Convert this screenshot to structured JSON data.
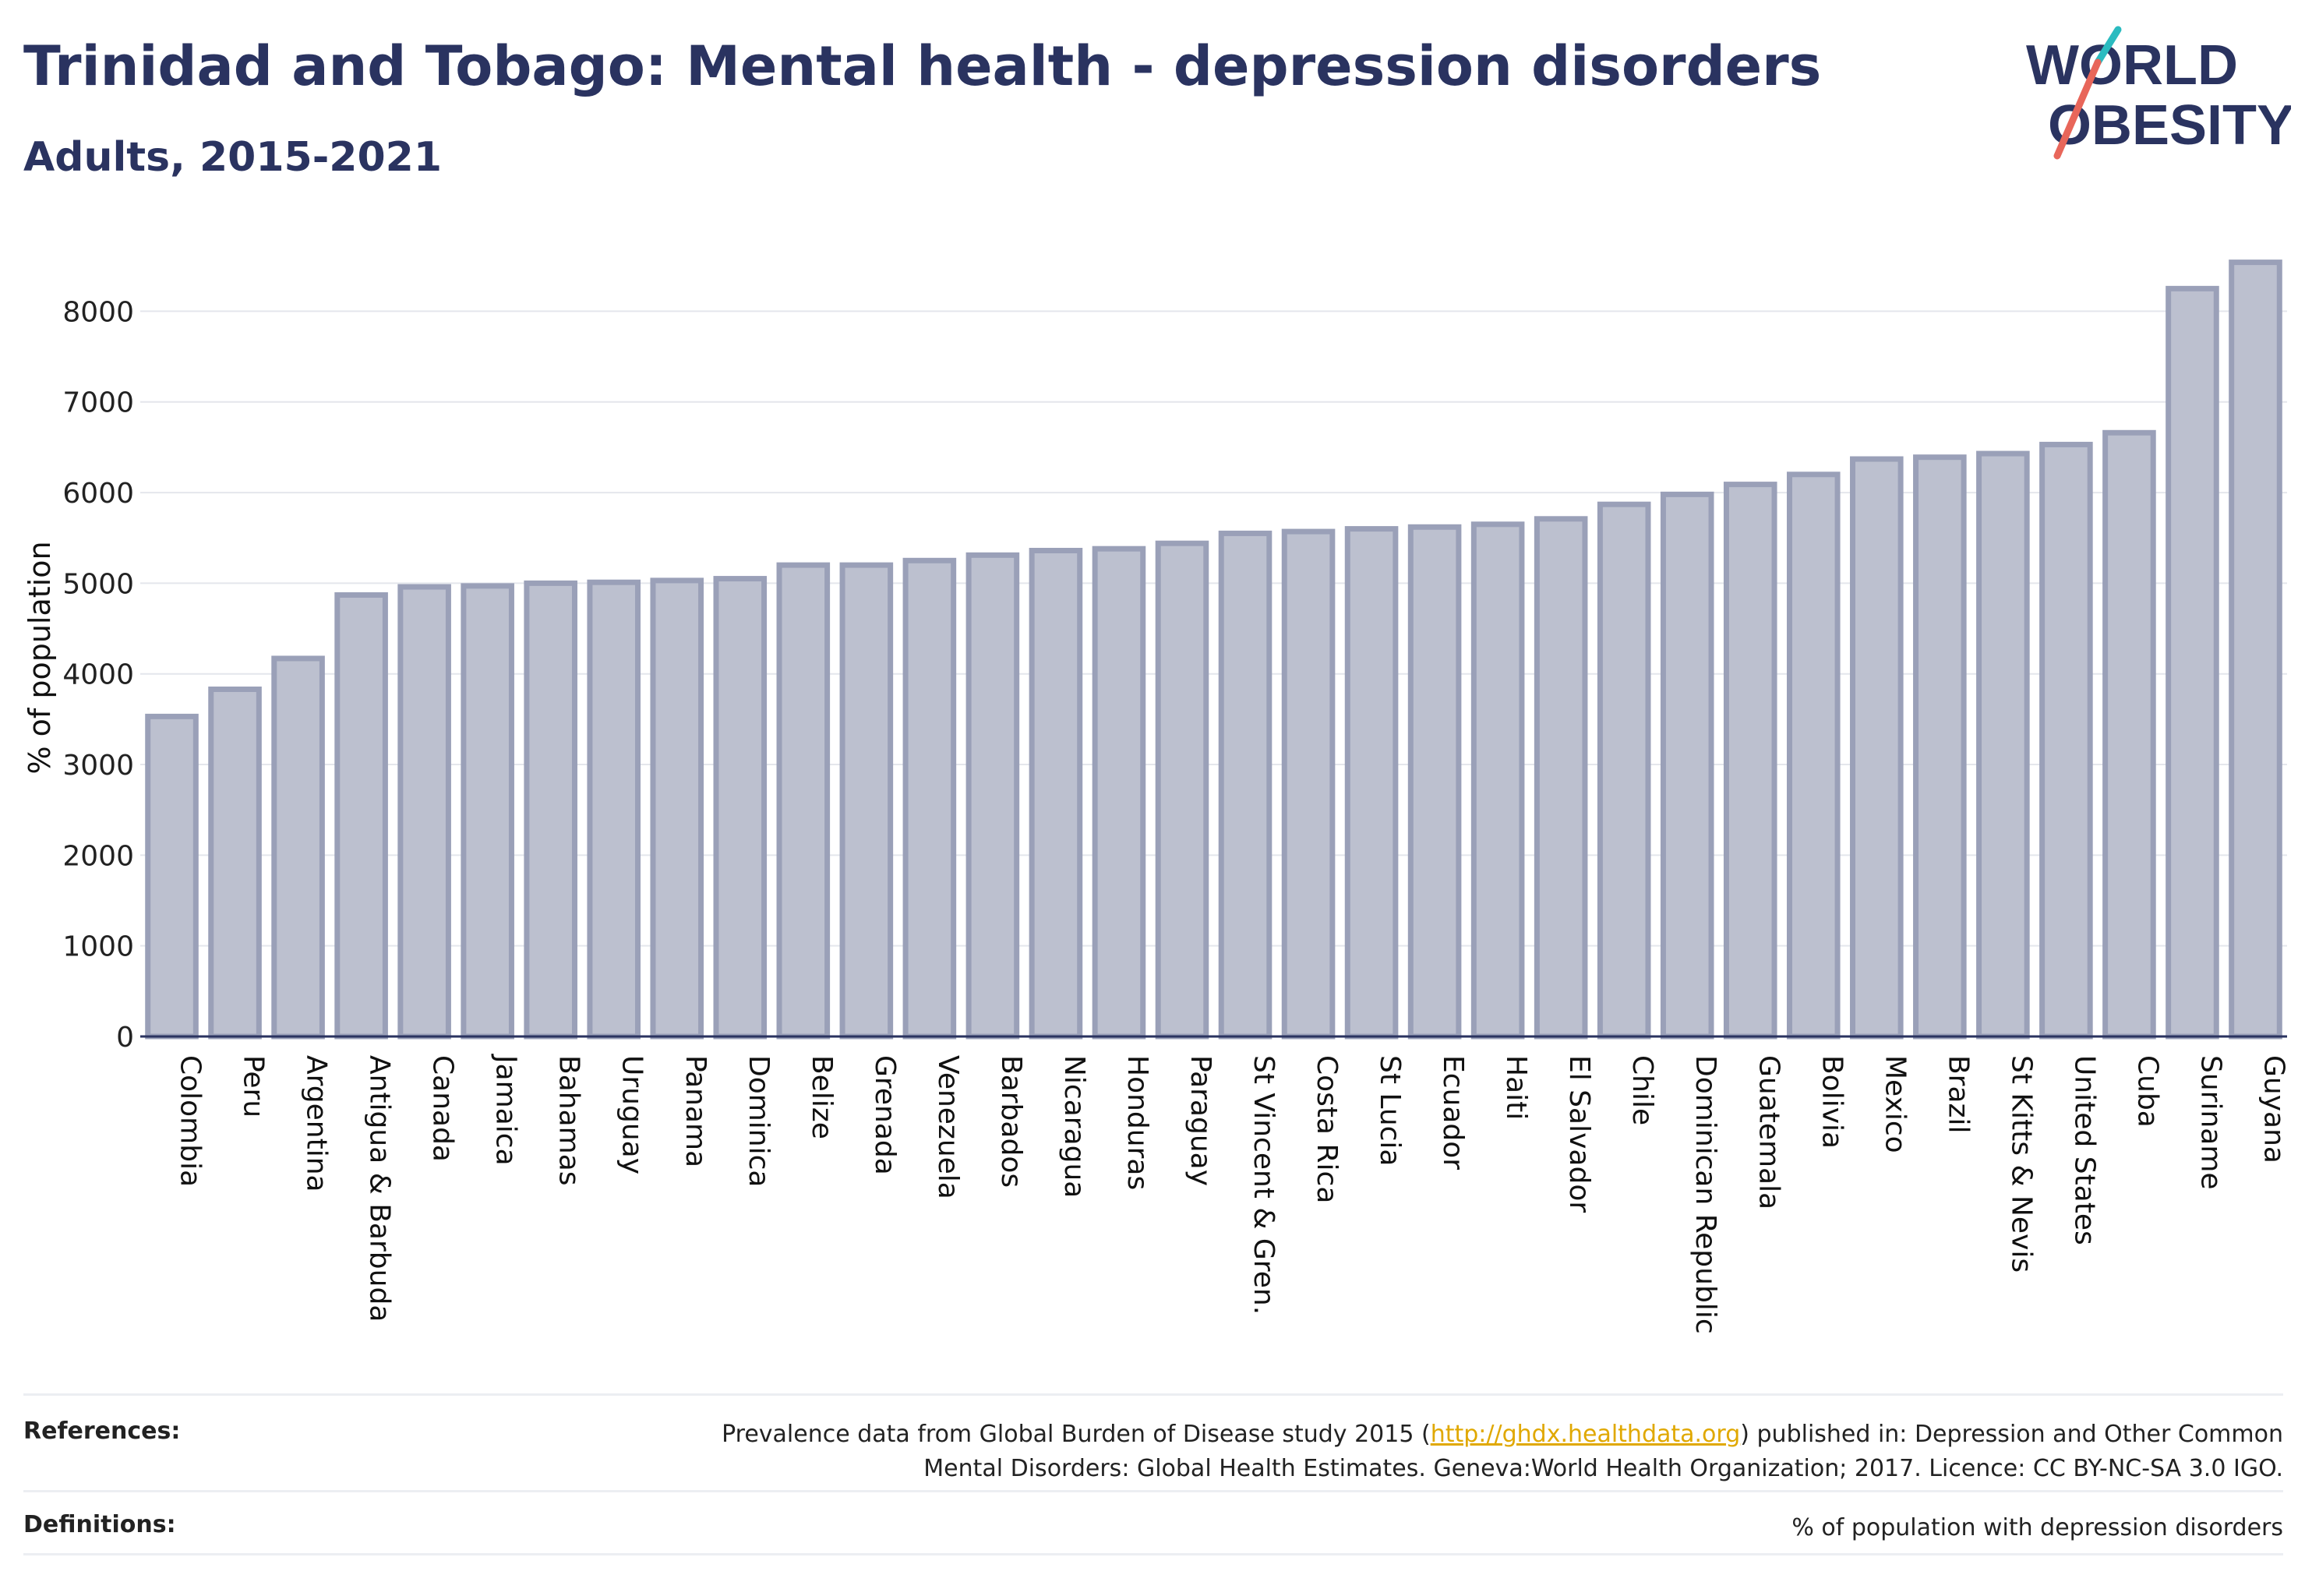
{
  "header": {
    "title": "Trinidad and Tobago: Mental health - depression disorders",
    "subtitle": "Adults, 2015-2021"
  },
  "logo": {
    "line1": "WORLD",
    "line2": "OBESITY"
  },
  "colors": {
    "bar_fill": "#bcc0cf",
    "bar_stroke": "#9aa0b8",
    "title": "#2a3360",
    "link": "#e0a800",
    "logo_teal": "#2bbbc0",
    "logo_red": "#e8665a"
  },
  "chart_data": {
    "type": "bar",
    "ylabel": "% of population",
    "ylim": [
      0,
      8700
    ],
    "yticks": [
      0,
      1000,
      2000,
      3000,
      4000,
      5000,
      6000,
      7000,
      8000
    ],
    "grid": true,
    "categories": [
      "Colombia",
      "Peru",
      "Argentina",
      "Antigua & Barbuda",
      "Canada",
      "Jamaica",
      "Bahamas",
      "Uruguay",
      "Panama",
      "Dominica",
      "Belize",
      "Grenada",
      "Venezuela",
      "Barbados",
      "Nicaragua",
      "Honduras",
      "Paraguay",
      "St Vincent & Gren.",
      "Costa Rica",
      "St Lucia",
      "Ecuador",
      "Haiti",
      "El Salvador",
      "Chile",
      "Dominican Republic",
      "Guatemala",
      "Bolivia",
      "Mexico",
      "Brazil",
      "St Kitts & Nevis",
      "United States",
      "Cuba",
      "Suriname",
      "Guyana"
    ],
    "values": [
      3530,
      3830,
      4170,
      4870,
      4960,
      4970,
      5000,
      5010,
      5030,
      5050,
      5200,
      5200,
      5250,
      5310,
      5360,
      5380,
      5440,
      5550,
      5570,
      5600,
      5620,
      5650,
      5710,
      5870,
      5980,
      6090,
      6200,
      6370,
      6390,
      6430,
      6530,
      6660,
      8250,
      8540
    ]
  },
  "footer": {
    "references_label": "References:",
    "references_prefix": "Prevalence data from Global Burden of Disease study 2015 (",
    "references_link": "http://ghdx.healthdata.org",
    "references_suffix": ") published in: Depression and Other Common",
    "references_line2": "Mental Disorders: Global Health Estimates. Geneva:World Health Organization; 2017. Licence: CC BY-NC-SA 3.0 IGO.",
    "definitions_label": "Definitions:",
    "definitions_text": "% of population with depression disorders"
  }
}
